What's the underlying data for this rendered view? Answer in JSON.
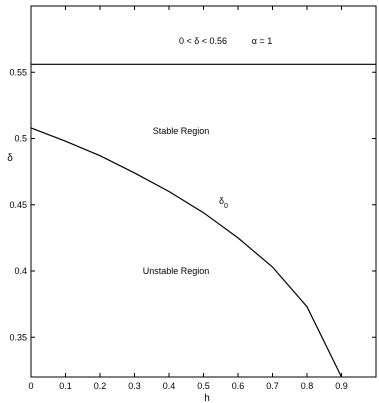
{
  "chart_data": {
    "type": "line",
    "title": "",
    "xlabel": "h",
    "ylabel": "δ",
    "xlim": [
      0,
      1.0
    ],
    "ylim": [
      0.32,
      0.6
    ],
    "x_ticks": [
      0,
      0.1,
      0.2,
      0.3,
      0.4,
      0.5,
      0.6,
      0.7,
      0.8,
      0.9
    ],
    "x_tick_labels": [
      "0",
      "0.1",
      "0.2",
      "0.3",
      "0.4",
      "0.5",
      "0.6",
      "0.7",
      "0.8",
      "0.9"
    ],
    "y_ticks": [
      0.35,
      0.4,
      0.45,
      0.5,
      0.55
    ],
    "y_tick_labels": [
      "0.35",
      "0.4",
      "0.45",
      "0.5",
      "0.55"
    ],
    "grid": false,
    "series": [
      {
        "name": "δ0",
        "x": [
          0,
          0.1,
          0.2,
          0.3,
          0.4,
          0.5,
          0.6,
          0.7,
          0.8,
          0.9
        ],
        "y": [
          0.508,
          0.498,
          0.487,
          0.474,
          0.46,
          0.444,
          0.425,
          0.403,
          0.373,
          0.32
        ]
      }
    ],
    "hlines": [
      {
        "y": 0.556
      }
    ],
    "annotations": {
      "range": "0 < δ < 0.56",
      "alpha": "α = 1",
      "stable": "Stable Region",
      "unstable": "Unstable Region",
      "curve_label_main": "δ",
      "curve_label_sub": "0"
    }
  }
}
